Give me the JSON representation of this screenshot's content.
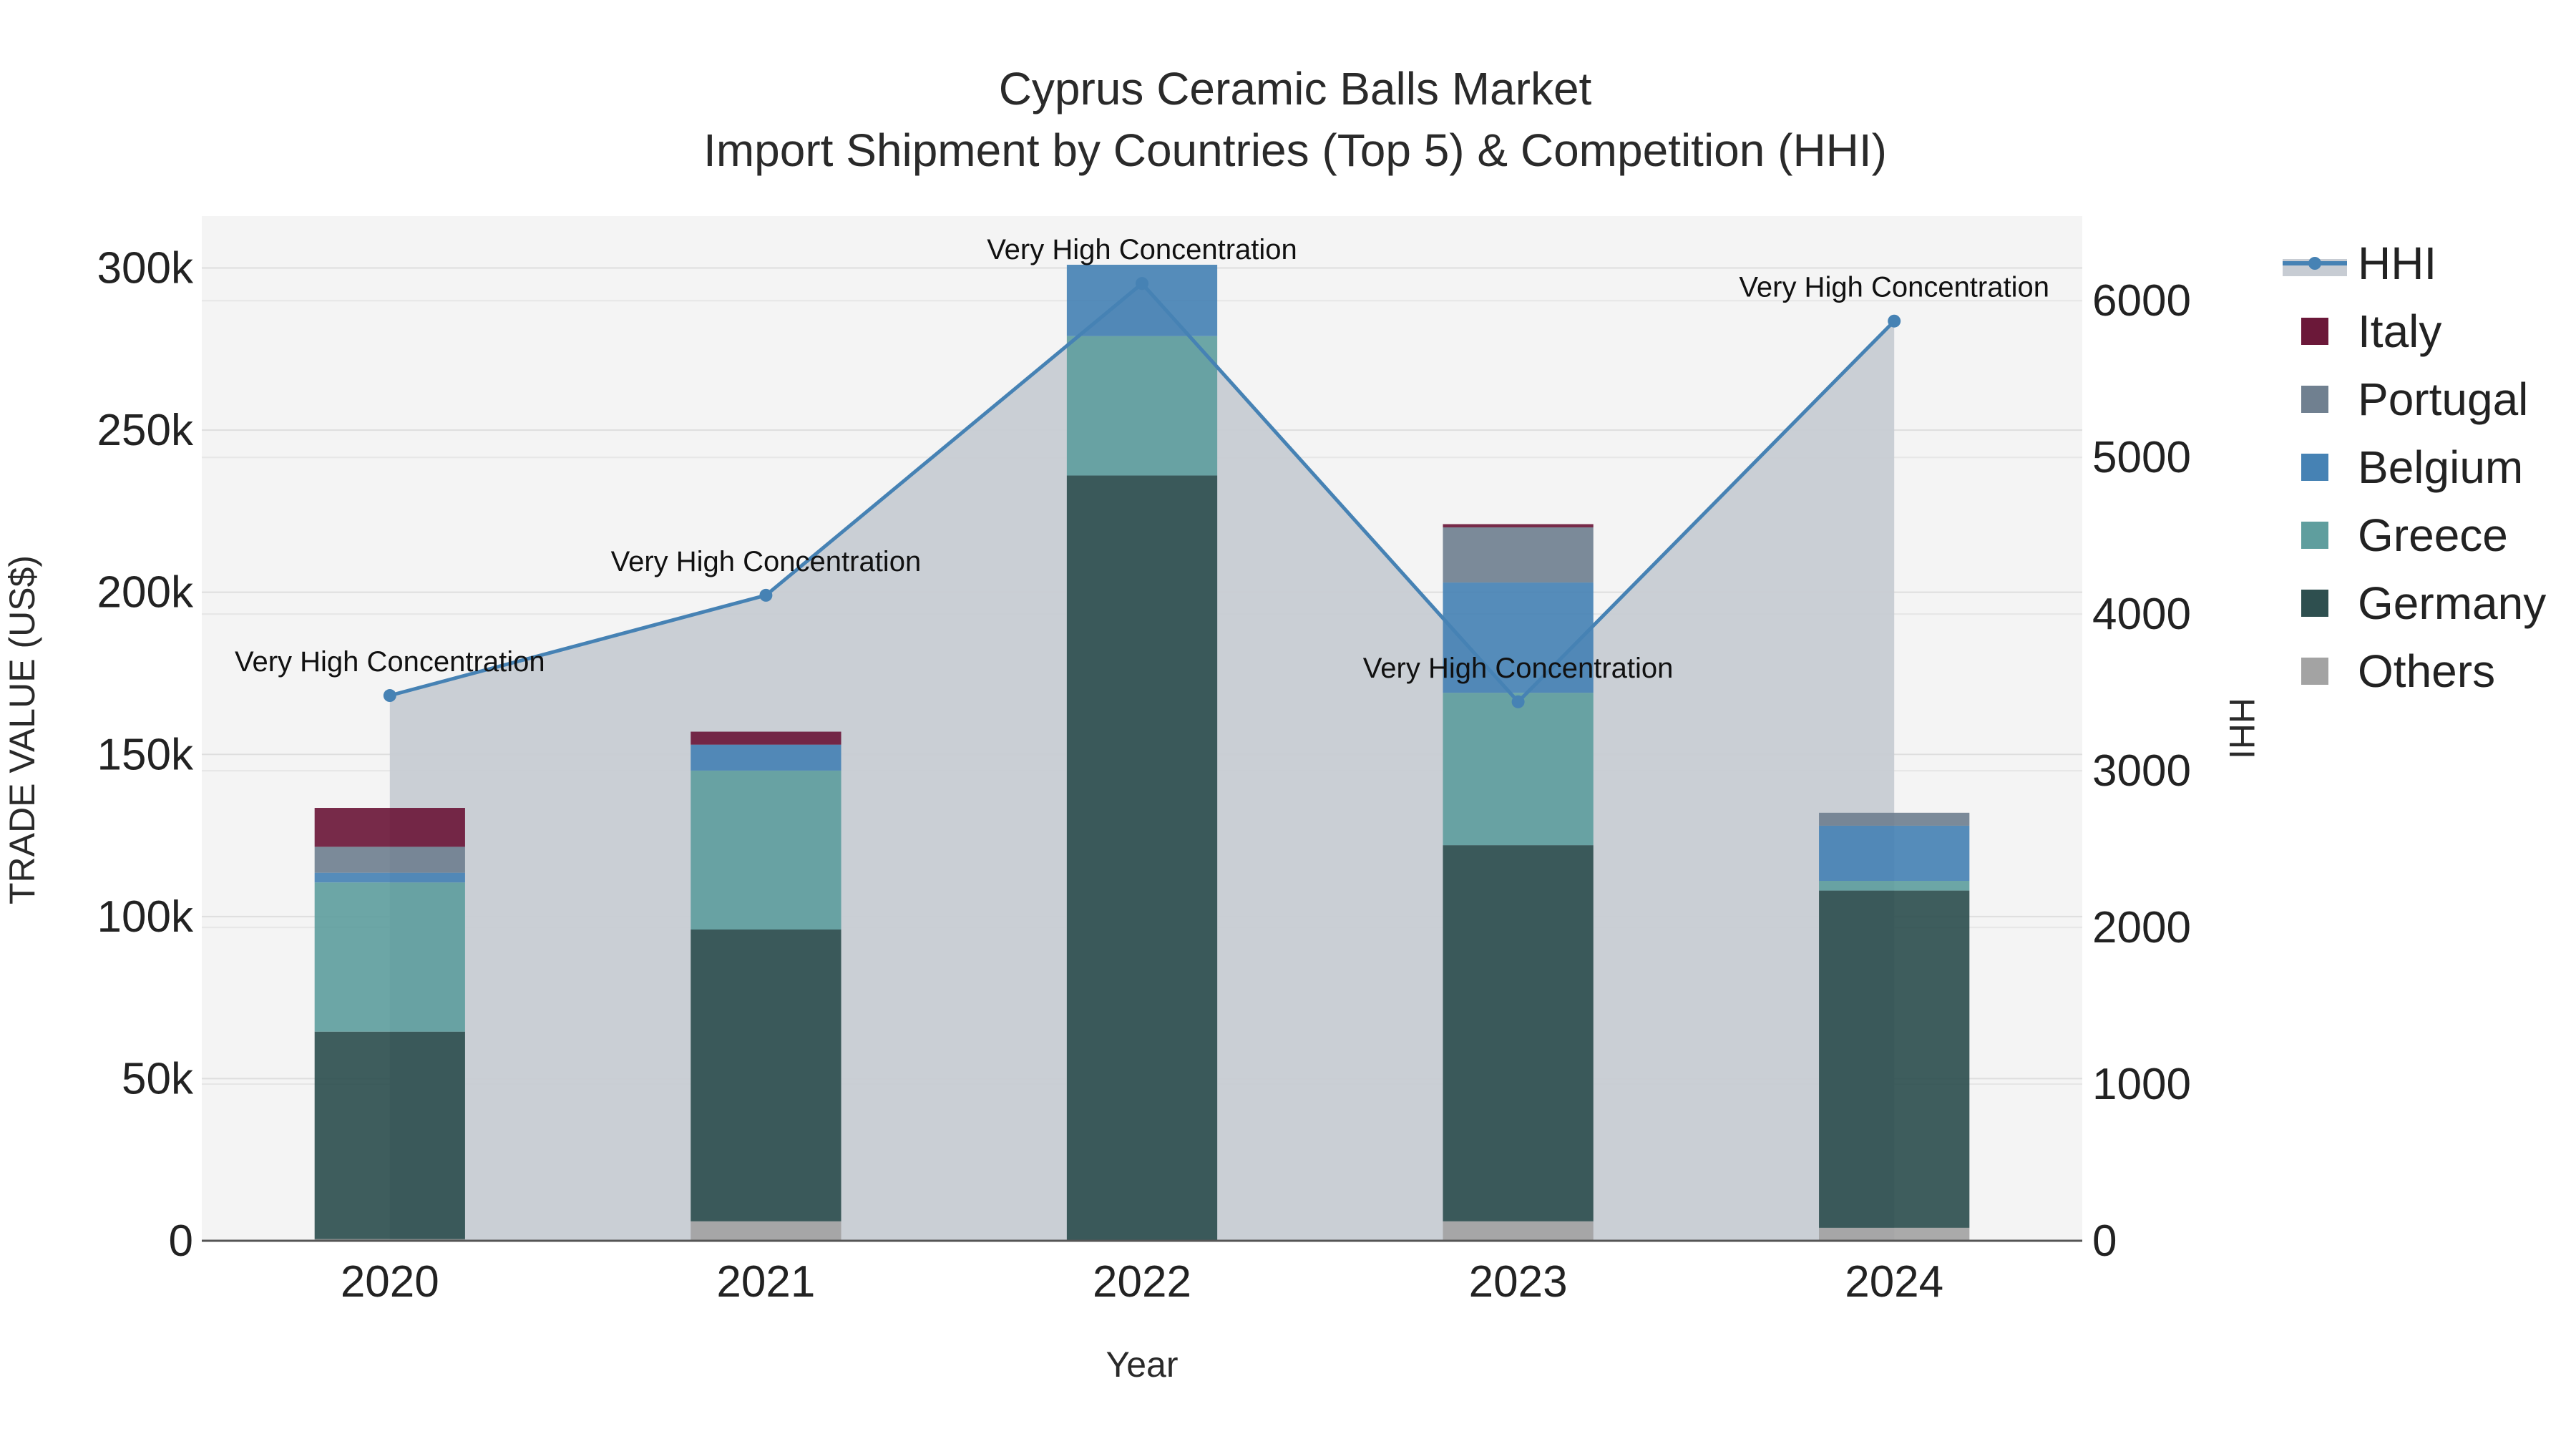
{
  "chart_data": {
    "type": "bar",
    "title": "Cyprus Ceramic Balls Market",
    "subtitle": "Import Shipment by Countries (Top 5) & Competition (HHI)",
    "xlabel": "Year",
    "ylabel": "TRADE VALUE (US$)",
    "y2label": "HHI",
    "ylim": [
      0,
      316000
    ],
    "y2lim": [
      0,
      6540
    ],
    "yticks": [
      0,
      50000,
      100000,
      150000,
      200000,
      250000,
      300000
    ],
    "ytick_labels": [
      "0",
      "50k",
      "100k",
      "150k",
      "200k",
      "250k",
      "300k"
    ],
    "y2ticks": [
      0,
      1000,
      2000,
      3000,
      4000,
      5000,
      6000
    ],
    "y2tick_labels": [
      "0",
      "1000",
      "2000",
      "3000",
      "4000",
      "5000",
      "6000"
    ],
    "categories": [
      "2020",
      "2021",
      "2022",
      "2023",
      "2024"
    ],
    "series": [
      {
        "name": "Others",
        "color": "#a3a3a3",
        "values": [
          500,
          6000,
          0,
          6000,
          4000
        ]
      },
      {
        "name": "Germany",
        "color": "#2e4f4f",
        "values": [
          64000,
          90000,
          236000,
          116000,
          104000
        ]
      },
      {
        "name": "Greece",
        "color": "#5f9e9e",
        "values": [
          46000,
          49000,
          43000,
          47000,
          3000
        ]
      },
      {
        "name": "Belgium",
        "color": "#4682b4",
        "values": [
          3000,
          8000,
          22000,
          34000,
          17000
        ]
      },
      {
        "name": "Portugal",
        "color": "#708090",
        "values": [
          8000,
          0,
          0,
          17000,
          4000
        ]
      },
      {
        "name": "Italy",
        "color": "#6b1839",
        "values": [
          12000,
          4000,
          0,
          1000,
          0
        ]
      }
    ],
    "hhi": {
      "name": "HHI",
      "color": "#4682b4",
      "area_color": "#c7ccd3",
      "values": [
        3480,
        4120,
        6110,
        3440,
        5870
      ],
      "labels": [
        "Very High Concentration",
        "Very High Concentration",
        "Very High Concentration",
        "Very High Concentration",
        "Very High Concentration"
      ]
    },
    "legend": [
      "HHI",
      "Italy",
      "Portugal",
      "Belgium",
      "Greece",
      "Germany",
      "Others"
    ],
    "legend_position": "right"
  }
}
